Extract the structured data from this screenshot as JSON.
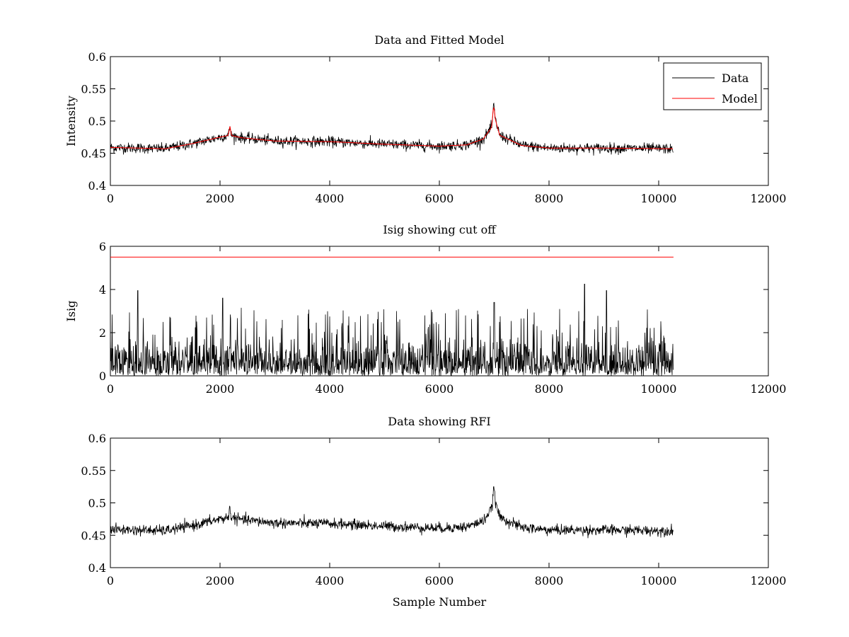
{
  "chart_data": [
    {
      "type": "line",
      "title": "Data and Fitted Model",
      "xlabel": "",
      "ylabel": "Intensity",
      "xlim": [
        0,
        12000
      ],
      "ylim": [
        0.4,
        0.6
      ],
      "xticks": [
        "0",
        "2000",
        "4000",
        "6000",
        "8000",
        "10000",
        "12000"
      ],
      "yticks": [
        "0.4",
        "0.45",
        "0.5",
        "0.55",
        "0.6"
      ],
      "grid": false,
      "legend": "top-right",
      "series": [
        {
          "name": "Data",
          "color": "#000000",
          "kind": "noisy",
          "noise": 0.004,
          "x": [
            0,
            1000,
            1500,
            2000,
            2180,
            2400,
            3000,
            4000,
            5000,
            6000,
            6500,
            6800,
            6950,
            7000,
            7100,
            7500,
            8000,
            9000,
            10270
          ],
          "y": [
            0.459,
            0.457,
            0.465,
            0.475,
            0.478,
            0.474,
            0.469,
            0.468,
            0.464,
            0.461,
            0.463,
            0.472,
            0.49,
            0.509,
            0.478,
            0.462,
            0.458,
            0.458,
            0.457
          ],
          "spikes": [
            {
              "x": 2180,
              "y": 0.493
            },
            {
              "x": 6990,
              "y": 0.525
            }
          ]
        },
        {
          "name": "Model",
          "color": "#ff0000",
          "kind": "smooth",
          "x": [
            0,
            1000,
            1500,
            2000,
            2180,
            2400,
            3000,
            4000,
            5000,
            6000,
            6500,
            6800,
            6950,
            7000,
            7100,
            7500,
            8000,
            9000,
            10270
          ],
          "y": [
            0.459,
            0.457,
            0.465,
            0.475,
            0.478,
            0.474,
            0.469,
            0.468,
            0.464,
            0.461,
            0.463,
            0.472,
            0.49,
            0.509,
            0.478,
            0.462,
            0.458,
            0.458,
            0.457
          ],
          "spikes": [
            {
              "x": 2180,
              "y": 0.492
            },
            {
              "x": 6990,
              "y": 0.523
            }
          ]
        }
      ]
    },
    {
      "type": "line",
      "title": "Isig showing cut off",
      "xlabel": "",
      "ylabel": "Isig",
      "xlim": [
        0,
        12000
      ],
      "ylim": [
        0,
        6
      ],
      "xticks": [
        "0",
        "2000",
        "4000",
        "6000",
        "8000",
        "10000",
        "12000"
      ],
      "yticks": [
        "0",
        "2",
        "4",
        "6"
      ],
      "grid": false,
      "legend": "none",
      "series": [
        {
          "name": "",
          "color": "#000000",
          "kind": "abs-noise",
          "x_end": 10270,
          "typical_max": 2.6,
          "peaks": [
            {
              "x": 500,
              "y": 3.95
            },
            {
              "x": 2050,
              "y": 3.6
            },
            {
              "x": 7000,
              "y": 3.4
            },
            {
              "x": 8650,
              "y": 4.25
            },
            {
              "x": 9050,
              "y": 3.95
            }
          ]
        },
        {
          "name": "",
          "color": "#ff0000",
          "kind": "constant",
          "x": [
            0,
            10270
          ],
          "y": [
            5.5,
            5.5
          ]
        }
      ]
    },
    {
      "type": "line",
      "title": "Data showing RFI",
      "xlabel": "Sample Number",
      "ylabel": "",
      "xlim": [
        0,
        12000
      ],
      "ylim": [
        0.4,
        0.6
      ],
      "xticks": [
        "0",
        "2000",
        "4000",
        "6000",
        "8000",
        "10000",
        "12000"
      ],
      "yticks": [
        "0.4",
        "0.45",
        "0.5",
        "0.55",
        "0.6"
      ],
      "grid": false,
      "legend": "none",
      "series": [
        {
          "name": "",
          "color": "#000000",
          "kind": "noisy",
          "noise": 0.004,
          "x": [
            0,
            1000,
            1500,
            2000,
            2180,
            2400,
            3000,
            4000,
            5000,
            6000,
            6500,
            6800,
            6950,
            7000,
            7100,
            7500,
            8000,
            9000,
            10270
          ],
          "y": [
            0.459,
            0.457,
            0.465,
            0.475,
            0.478,
            0.474,
            0.469,
            0.468,
            0.464,
            0.461,
            0.463,
            0.472,
            0.49,
            0.509,
            0.478,
            0.462,
            0.458,
            0.458,
            0.457
          ],
          "spikes": [
            {
              "x": 2180,
              "y": 0.493
            },
            {
              "x": 6990,
              "y": 0.525
            }
          ]
        }
      ]
    }
  ]
}
